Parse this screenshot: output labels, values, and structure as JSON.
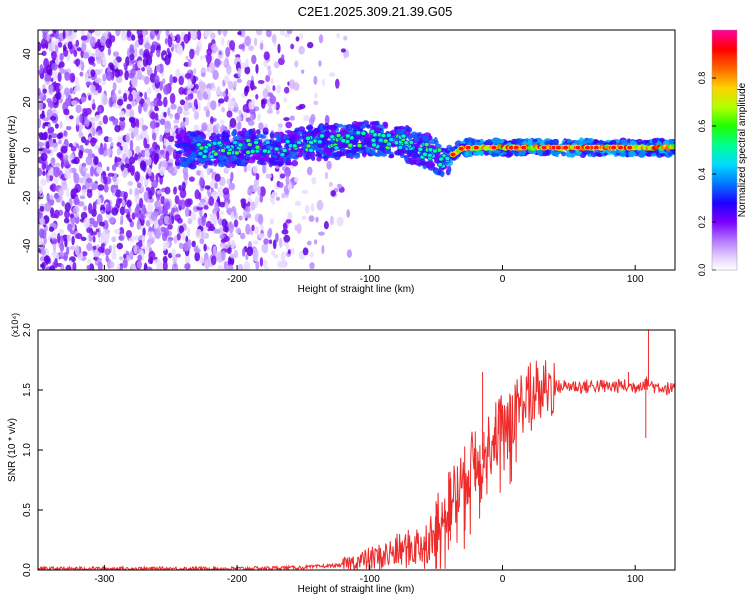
{
  "title": "C2E1.2025.309.21.39.G05",
  "chart_data": [
    {
      "type": "heatmap",
      "xlabel": "Height of straight line (km)",
      "ylabel": "Frequency (Hz)",
      "xlim": [
        -350,
        130
      ],
      "ylim": [
        -50,
        50
      ],
      "xticks": [
        -300,
        -200,
        -100,
        0,
        100
      ],
      "yticks": [
        -40,
        -20,
        0,
        20,
        40
      ],
      "grid": false,
      "colorbar": {
        "label": "Normalized spectral amplitude",
        "range": [
          0,
          1
        ],
        "ticks": [
          "0.0",
          "0.2",
          "0.4",
          "0.6",
          "0.8"
        ],
        "tick_values": [
          0.0,
          0.2,
          0.4,
          0.6,
          0.8
        ],
        "colors": [
          "#ffffff",
          "#c8a0ff",
          "#7a00ff",
          "#0000ff",
          "#00c8ff",
          "#00ff60",
          "#c8ff00",
          "#ffa000",
          "#ff0000",
          "#ff00a0"
        ]
      },
      "ridge": {
        "x": [
          -240,
          -220,
          -200,
          -180,
          -160,
          -140,
          -120,
          -100,
          -90,
          -80,
          -70,
          -60,
          -50,
          -45,
          -40,
          -30,
          -20,
          0,
          20,
          40,
          60,
          80,
          100,
          130
        ],
        "y": [
          0,
          0,
          1,
          1,
          1,
          3,
          4,
          5,
          4,
          4,
          2,
          0,
          -2,
          -4,
          -3,
          1,
          1,
          1,
          1,
          1,
          1,
          1,
          1,
          1
        ]
      }
    },
    {
      "type": "line",
      "xlabel": "Height of straight line (km)",
      "ylabel": "SNR (10 * v/v)",
      "yscale_label": "(x10⁴)",
      "xlim": [
        -350,
        130
      ],
      "ylim": [
        0,
        2.0
      ],
      "xticks": [
        -300,
        -200,
        -100,
        0,
        100
      ],
      "yticks": [
        "0.0",
        "0.5",
        "1.0",
        "1.5",
        "2.0"
      ],
      "ytick_values": [
        0.0,
        0.5,
        1.0,
        1.5,
        2.0
      ],
      "line_color": "#ee2b2b",
      "series": [
        {
          "x": [
            -350,
            -300,
            -250,
            -200,
            -150,
            -120,
            -100,
            -90,
            -80,
            -70,
            -60,
            -50,
            -45,
            -40,
            -35,
            -30,
            -25,
            -20,
            -15,
            -10,
            -5,
            0,
            5,
            10,
            15,
            20,
            25,
            30,
            35,
            40,
            50,
            60,
            70,
            80,
            90,
            100,
            105,
            108,
            110,
            115,
            120,
            130
          ],
          "values": [
            0.01,
            0.01,
            0.01,
            0.01,
            0.02,
            0.04,
            0.08,
            0.1,
            0.14,
            0.16,
            0.2,
            0.3,
            0.42,
            0.55,
            0.62,
            0.7,
            0.82,
            0.9,
            0.92,
            1.0,
            1.1,
            1.18,
            1.25,
            1.32,
            1.38,
            1.43,
            1.47,
            1.48,
            1.5,
            1.52,
            1.53,
            1.52,
            1.53,
            1.52,
            1.53,
            1.52,
            1.55,
            1.55,
            1.55,
            1.52,
            1.52,
            1.49
          ],
          "spikes": [
            {
              "x": -15,
              "value": 1.65
            },
            {
              "x": -3,
              "value": 1.3
            },
            {
              "x": -40,
              "value": 0.75
            },
            {
              "x": 95,
              "value": 1.65
            },
            {
              "x": 110,
              "value": 2.0
            },
            {
              "x": 108,
              "value": 1.1
            }
          ]
        }
      ]
    }
  ]
}
